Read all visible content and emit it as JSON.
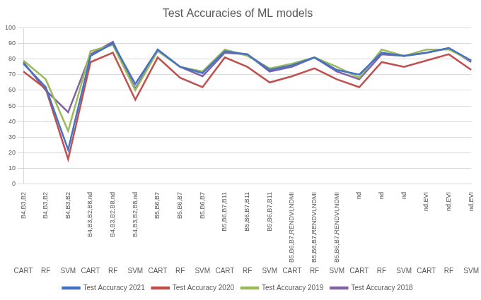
{
  "chart_data": {
    "type": "line",
    "title": "Test Accuracies of ML models",
    "categories": [
      [
        "B4,B3,B2",
        "CART"
      ],
      [
        "B4,B3,B2",
        "RF"
      ],
      [
        "B4,B3,B2",
        "SVM"
      ],
      [
        "B4,B3,B2,B8,nd",
        "CART"
      ],
      [
        "B4,B3,B2,B8,nd",
        "RF"
      ],
      [
        "B4,B3,B2,B8,nd",
        "SVM"
      ],
      [
        "B5,B6,B7",
        "CART"
      ],
      [
        "B5,B6,B7",
        "RF"
      ],
      [
        "B5,B6,B7",
        "SVM"
      ],
      [
        "B5,B6,B7,B11",
        "CART"
      ],
      [
        "B5,B6,B7,B11",
        "RF"
      ],
      [
        "B5,B6,B7,B11",
        "SVM"
      ],
      [
        "B5,B6,B7,RENDVI,NDMI",
        "CART"
      ],
      [
        "B5,B6,B7,RENDVI,NDMI",
        "RF"
      ],
      [
        "B5,B6,B7,RENDVI,NDMI",
        "SVM"
      ],
      [
        "nd",
        "CART"
      ],
      [
        "nd",
        "RF"
      ],
      [
        "nd",
        "SVM"
      ],
      [
        "nd,EVI",
        "CART"
      ],
      [
        "nd,EVI",
        "RF"
      ],
      [
        "nd,EVI",
        "SVM"
      ]
    ],
    "series": [
      {
        "name": "Test Accuracy 2021",
        "color": "#4472c4",
        "values": [
          77,
          62,
          22,
          82,
          90,
          64,
          86,
          75,
          71,
          85,
          83,
          73,
          76,
          81,
          73,
          70,
          84,
          82,
          84,
          87,
          79
        ]
      },
      {
        "name": "Test Accuracy 2020",
        "color": "#c0504d",
        "values": [
          72,
          61,
          16,
          78,
          84,
          54,
          81,
          68,
          62,
          81,
          75,
          65,
          69,
          74,
          67,
          62,
          78,
          75,
          79,
          83,
          73
        ]
      },
      {
        "name": "Test Accuracy 2019",
        "color": "#9bbb59",
        "values": [
          79,
          67,
          34,
          85,
          89,
          60,
          85,
          75,
          72,
          86,
          82,
          74,
          77,
          81,
          75,
          68,
          86,
          82,
          86,
          86,
          79
        ]
      },
      {
        "name": "Test Accuracy 2018",
        "color": "#8064a2",
        "values": [
          78,
          60,
          46,
          83,
          91,
          61,
          86,
          75,
          69,
          84,
          83,
          72,
          75,
          81,
          72,
          67,
          83,
          82,
          84,
          87,
          78
        ]
      }
    ],
    "ylim": [
      0,
      100
    ],
    "yticks": [
      0,
      10,
      20,
      30,
      40,
      50,
      60,
      70,
      80,
      90,
      100
    ],
    "grid": true,
    "legend": "bottom"
  }
}
